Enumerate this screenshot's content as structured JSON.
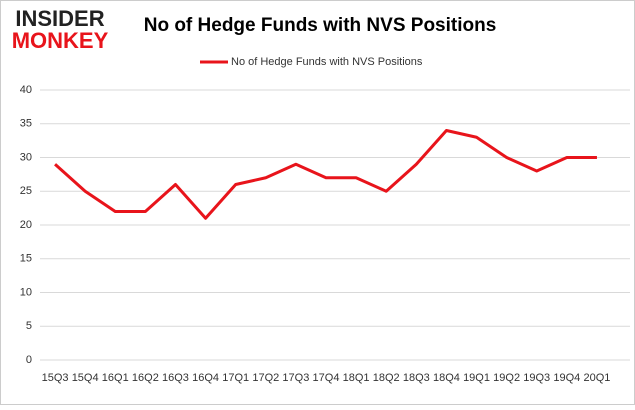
{
  "logo": {
    "top": "INSIDER",
    "bottom": "MONKEY"
  },
  "chart_data": {
    "type": "line",
    "title": "No of Hedge Funds with NVS Positions",
    "categories": [
      "15Q3",
      "15Q4",
      "16Q1",
      "16Q2",
      "16Q3",
      "16Q4",
      "17Q1",
      "17Q2",
      "17Q3",
      "17Q4",
      "18Q1",
      "18Q2",
      "18Q3",
      "18Q4",
      "19Q1",
      "19Q2",
      "19Q3",
      "19Q4",
      "20Q1"
    ],
    "series": [
      {
        "name": "No of Hedge Funds with NVS Positions",
        "color": "#e8141b",
        "values": [
          29,
          25,
          22,
          22,
          26,
          21,
          26,
          27,
          29,
          27,
          27,
          25,
          29,
          34,
          33,
          30,
          28,
          30,
          30
        ]
      }
    ],
    "ylim": [
      0,
      40
    ],
    "yticks": [
      0,
      5,
      10,
      15,
      20,
      25,
      30,
      35,
      40
    ],
    "grid": true,
    "legend": "top"
  }
}
